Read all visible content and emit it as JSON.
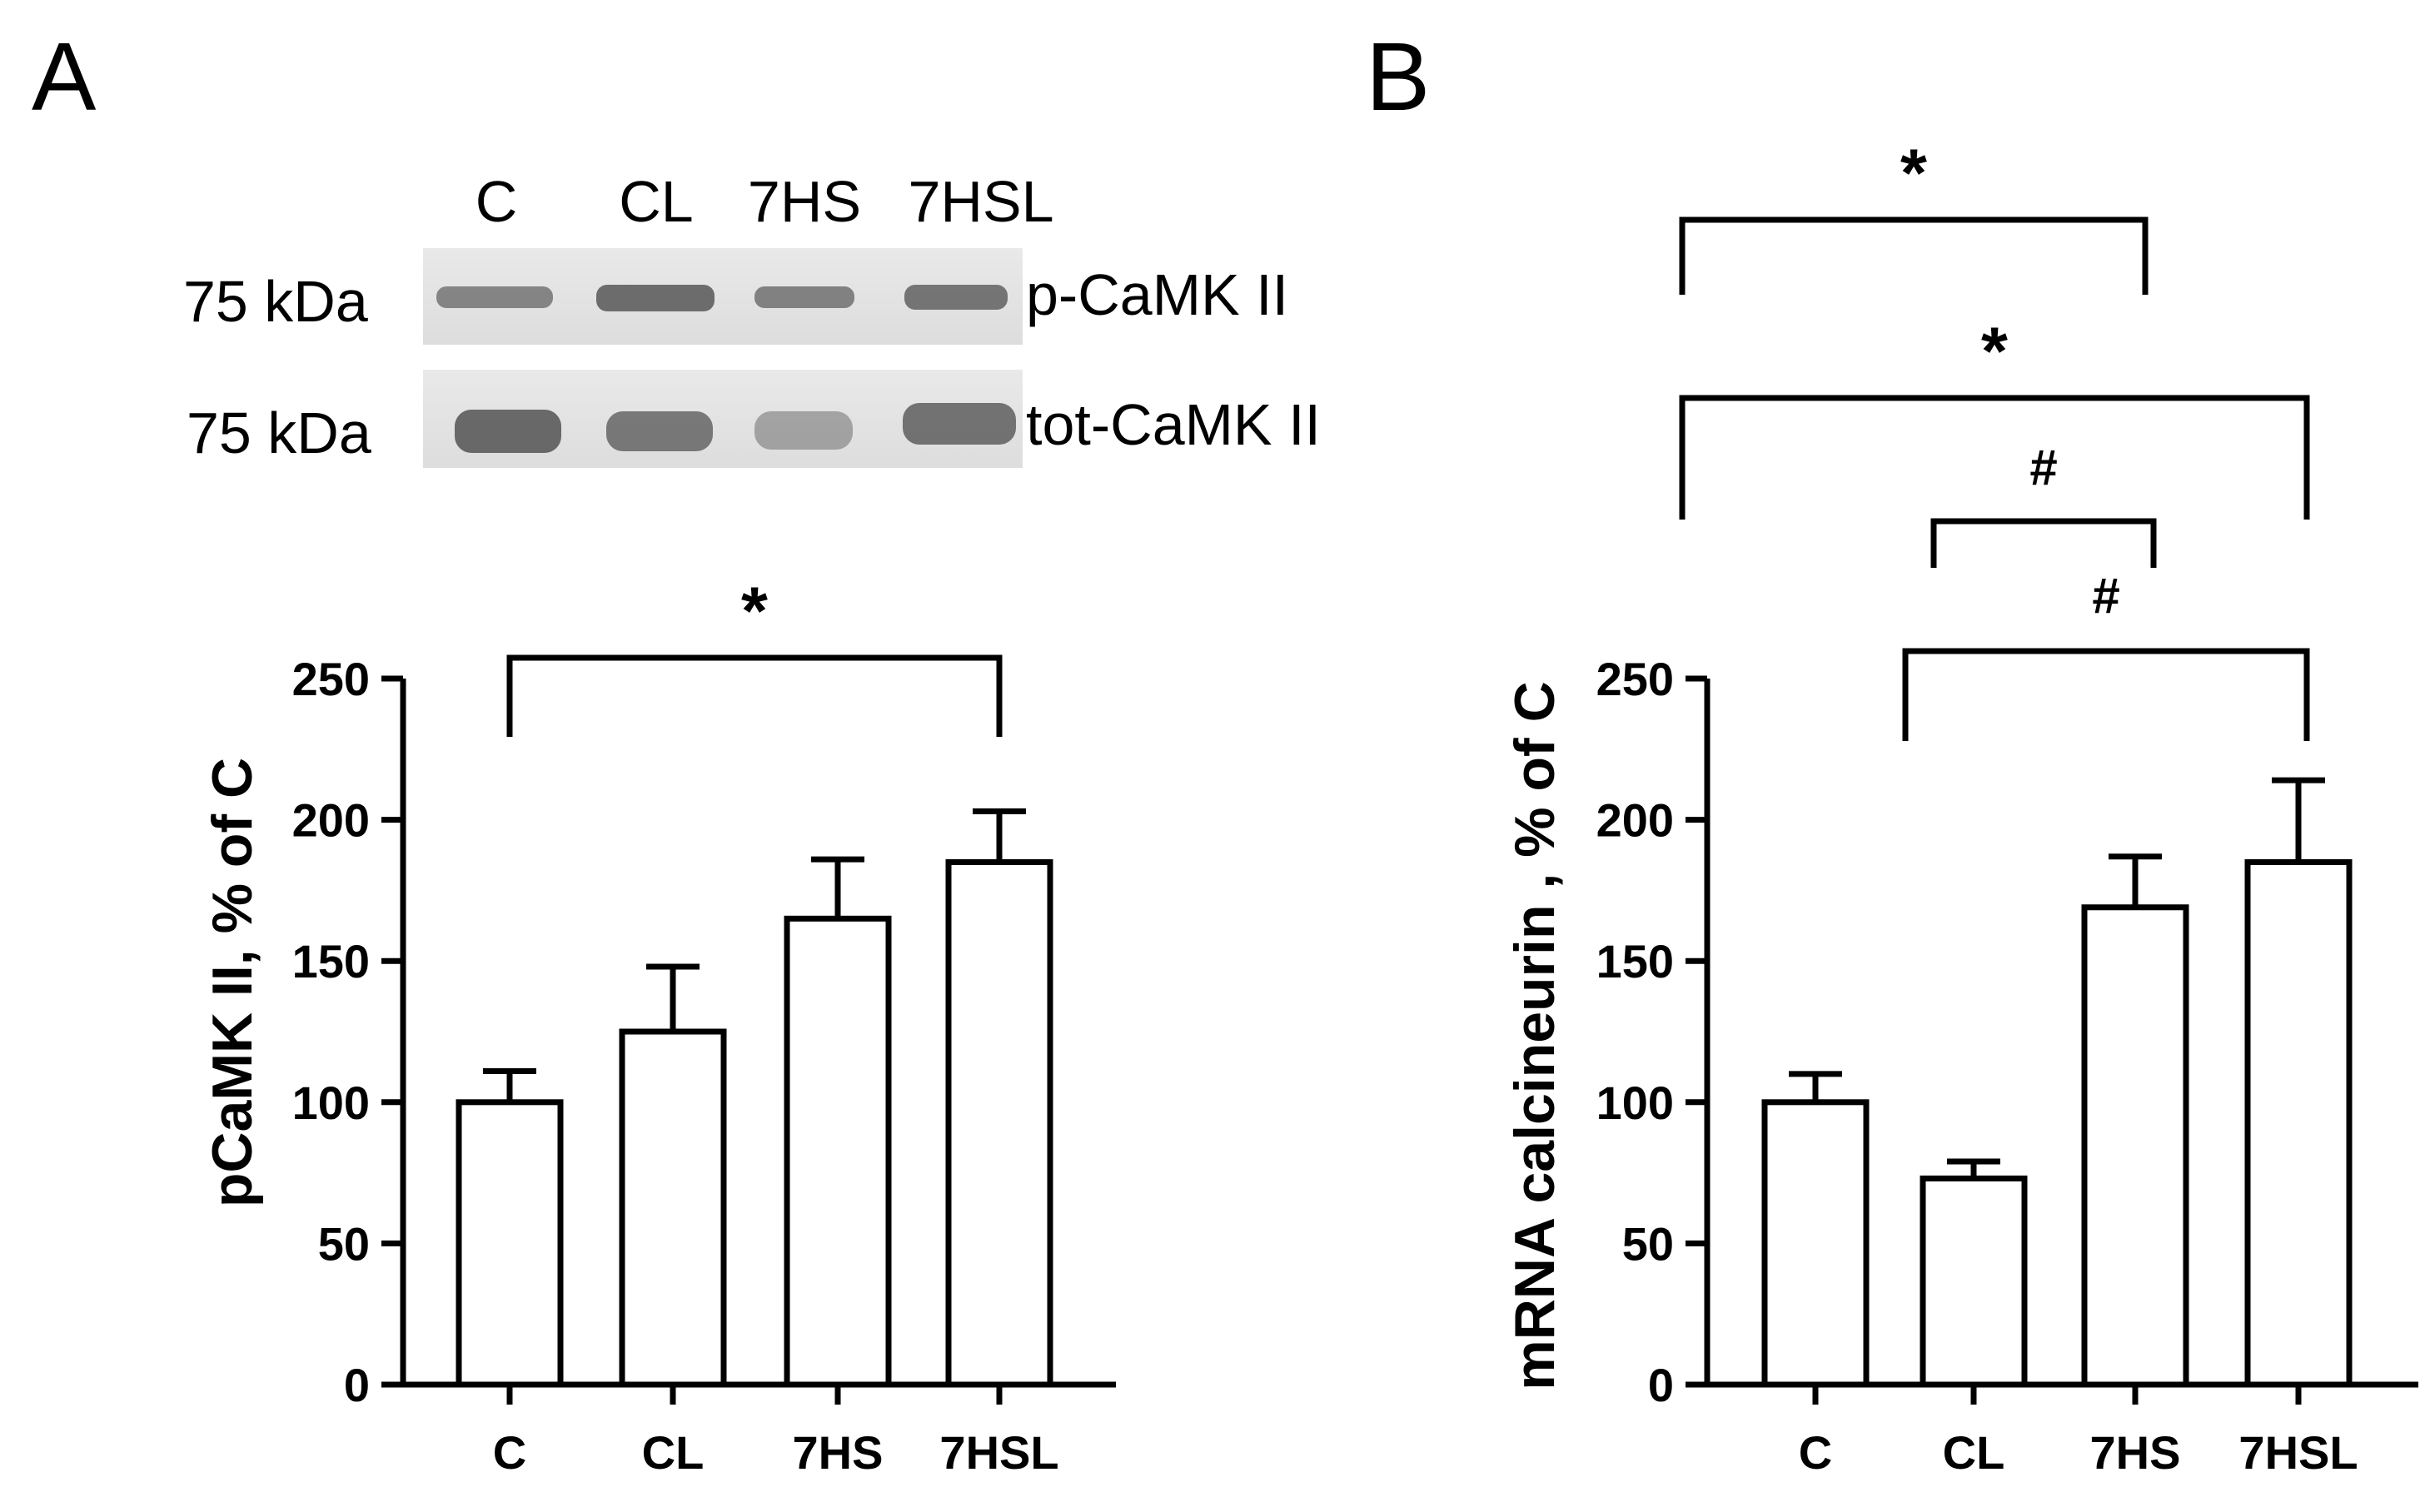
{
  "panels": {
    "a_label": "A",
    "b_label": "B"
  },
  "blot": {
    "lanes": [
      "C",
      "CL",
      "7HS",
      "7HSL"
    ],
    "rows": [
      {
        "mw": "75 kDa",
        "name": "p-CaMK II"
      },
      {
        "mw": "75 kDa",
        "name": "tot-CaMK II"
      }
    ]
  },
  "chart_data": [
    {
      "type": "bar",
      "panel": "A",
      "categories": [
        "C",
        "CL",
        "7HS",
        "7HSL"
      ],
      "values": [
        100,
        125,
        165,
        185
      ],
      "errors": [
        11,
        23,
        21,
        18
      ],
      "ylabel": "pCaMK II, % of C",
      "ylim": [
        0,
        250
      ],
      "yticks": [
        0,
        50,
        100,
        150,
        200,
        250
      ],
      "significance": [
        {
          "from": "C",
          "to": "7HSL",
          "mark": "*"
        }
      ]
    },
    {
      "type": "bar",
      "panel": "B",
      "categories": [
        "C",
        "CL",
        "7HS",
        "7HSL"
      ],
      "values": [
        100,
        73,
        169,
        185
      ],
      "errors": [
        10,
        6,
        18,
        29
      ],
      "ylabel": "mRNA  calcineurin , % of C",
      "ylim": [
        0,
        250
      ],
      "yticks": [
        0,
        50,
        100,
        150,
        200,
        250
      ],
      "significance": [
        {
          "from": "C",
          "to": "7HS",
          "mark": "*"
        },
        {
          "from": "C",
          "to": "7HSL",
          "mark": "*"
        },
        {
          "from": "CL",
          "to": "7HS",
          "mark": "#"
        },
        {
          "from": "CL",
          "to": "7HSL",
          "mark": "#"
        }
      ]
    }
  ]
}
